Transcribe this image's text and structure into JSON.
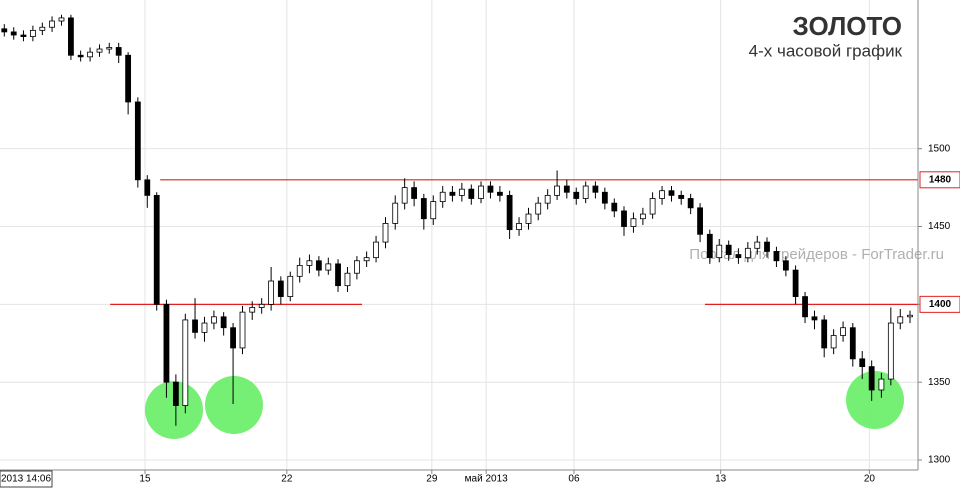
{
  "chart_data": {
    "type": "candlestick",
    "title": "ЗОЛОТО",
    "subtitle": "4-х часовой график",
    "watermark": "Портал для трейдеров - ForTrader.ru",
    "cursor_label": "2013 14:06",
    "x": [
      0.15,
      0.48,
      0.82,
      1.15,
      1.48,
      1.82,
      2.15,
      2.48,
      2.82,
      3.15,
      3.48,
      3.82,
      4.15,
      4.48,
      4.82,
      5.15,
      5.48,
      5.82,
      6.15,
      6.48,
      6.82,
      7.15,
      7.48,
      7.82,
      8.15,
      8.48,
      8.82,
      9.15,
      9.48,
      9.82,
      10.15,
      10.48,
      10.82,
      11.15,
      11.48,
      11.82,
      12.15,
      12.48,
      12.82,
      13.15,
      13.48,
      13.82,
      14.15,
      14.48,
      14.82,
      15.15,
      15.48,
      15.82,
      16.15,
      16.48,
      16.82,
      17.15,
      17.48,
      17.82,
      18.15,
      18.48,
      18.82,
      19.15,
      19.48,
      19.82,
      20.15,
      20.48,
      20.82,
      21.15,
      21.48,
      21.82,
      22.15,
      22.48,
      22.82,
      23.15,
      23.48,
      23.82,
      24.15,
      24.48,
      24.82,
      25.15,
      25.48,
      25.82,
      26.15,
      26.48,
      26.82,
      27.15,
      27.48,
      27.82,
      28.15,
      28.48,
      28.82,
      29.15,
      29.48,
      29.82,
      30.15,
      30.48,
      30.82,
      31.15,
      31.48,
      31.82
    ],
    "open": [
      1577,
      1575,
      1573,
      1572,
      1576,
      1578,
      1582,
      1584,
      1560,
      1559,
      1562,
      1564,
      1565,
      1560,
      1530,
      1480,
      1470,
      1400,
      1350,
      1335,
      1390,
      1382,
      1388,
      1392,
      1385,
      1372,
      1395,
      1398,
      1400,
      1415,
      1405,
      1418,
      1425,
      1428,
      1422,
      1426,
      1412,
      1420,
      1428,
      1430,
      1440,
      1452,
      1465,
      1475,
      1468,
      1455,
      1466,
      1472,
      1470,
      1474,
      1468,
      1476,
      1472,
      1470,
      1448,
      1452,
      1458,
      1465,
      1470,
      1476,
      1472,
      1468,
      1476,
      1472,
      1465,
      1460,
      1450,
      1455,
      1458,
      1468,
      1473,
      1470,
      1468,
      1462,
      1445,
      1430,
      1438,
      1432,
      1430,
      1436,
      1440,
      1434,
      1428,
      1422,
      1405,
      1392,
      1390,
      1372,
      1380,
      1385,
      1365,
      1360,
      1345,
      1352,
      1388,
      1392
    ],
    "high": [
      1580,
      1578,
      1576,
      1579,
      1581,
      1585,
      1586,
      1586,
      1563,
      1565,
      1567,
      1568,
      1568,
      1562,
      1533,
      1483,
      1472,
      1403,
      1355,
      1394,
      1404,
      1392,
      1396,
      1395,
      1388,
      1399,
      1402,
      1404,
      1424,
      1418,
      1421,
      1430,
      1432,
      1431,
      1430,
      1429,
      1424,
      1431,
      1434,
      1444,
      1456,
      1470,
      1481,
      1479,
      1471,
      1470,
      1476,
      1476,
      1478,
      1477,
      1479,
      1479,
      1476,
      1473,
      1456,
      1462,
      1469,
      1474,
      1486,
      1480,
      1475,
      1479,
      1479,
      1475,
      1468,
      1463,
      1459,
      1462,
      1472,
      1476,
      1476,
      1473,
      1471,
      1465,
      1448,
      1442,
      1441,
      1436,
      1440,
      1444,
      1443,
      1437,
      1431,
      1425,
      1408,
      1396,
      1393,
      1384,
      1389,
      1388,
      1370,
      1364,
      1356,
      1398,
      1397,
      1396
    ],
    "low": [
      1572,
      1570,
      1569,
      1569,
      1573,
      1575,
      1579,
      1557,
      1556,
      1556,
      1559,
      1561,
      1555,
      1522,
      1475,
      1462,
      1396,
      1340,
      1322,
      1330,
      1378,
      1376,
      1384,
      1380,
      1336,
      1368,
      1390,
      1394,
      1396,
      1400,
      1402,
      1414,
      1420,
      1418,
      1419,
      1408,
      1408,
      1416,
      1424,
      1427,
      1436,
      1448,
      1461,
      1463,
      1448,
      1451,
      1462,
      1466,
      1466,
      1464,
      1465,
      1468,
      1466,
      1442,
      1444,
      1448,
      1454,
      1461,
      1467,
      1468,
      1464,
      1465,
      1468,
      1461,
      1456,
      1444,
      1446,
      1451,
      1455,
      1464,
      1466,
      1464,
      1458,
      1440,
      1426,
      1427,
      1428,
      1426,
      1427,
      1432,
      1430,
      1424,
      1418,
      1400,
      1388,
      1384,
      1366,
      1368,
      1376,
      1360,
      1352,
      1338,
      1340,
      1348,
      1384,
      1388
    ],
    "close": [
      1575,
      1573,
      1572,
      1576,
      1578,
      1582,
      1584,
      1560,
      1559,
      1562,
      1564,
      1565,
      1560,
      1530,
      1480,
      1470,
      1400,
      1350,
      1335,
      1390,
      1382,
      1388,
      1392,
      1385,
      1372,
      1395,
      1398,
      1400,
      1415,
      1405,
      1418,
      1425,
      1428,
      1422,
      1426,
      1412,
      1420,
      1428,
      1430,
      1440,
      1452,
      1465,
      1475,
      1468,
      1455,
      1466,
      1472,
      1470,
      1474,
      1468,
      1476,
      1472,
      1470,
      1448,
      1452,
      1458,
      1465,
      1470,
      1476,
      1472,
      1468,
      1476,
      1472,
      1465,
      1460,
      1450,
      1455,
      1458,
      1468,
      1473,
      1470,
      1468,
      1462,
      1445,
      1430,
      1438,
      1432,
      1430,
      1436,
      1440,
      1434,
      1428,
      1422,
      1405,
      1392,
      1390,
      1372,
      1380,
      1385,
      1365,
      1360,
      1345,
      1352,
      1388,
      1392,
      1393
    ],
    "up_color": "#ffffff",
    "down_color": "#000000",
    "line_color": "#000000",
    "xlim": [
      0,
      32.1
    ],
    "xticks": [
      {
        "value": 5.07,
        "label": "15"
      },
      {
        "value": 10.03,
        "label": "22"
      },
      {
        "value": 15.1,
        "label": "29"
      },
      {
        "value": 17.0,
        "label": "май 2013"
      },
      {
        "value": 20.07,
        "label": "06"
      },
      {
        "value": 25.2,
        "label": "13"
      },
      {
        "value": 30.4,
        "label": "20"
      }
    ],
    "ylim": [
      1293.6,
      1595.5
    ],
    "yticks": [
      1300,
      1350,
      1400,
      1450,
      1500
    ],
    "grid": true,
    "hlines": [
      {
        "y": 1480,
        "x": [
          5.6,
          32.1
        ]
      },
      {
        "y": 1400,
        "x": [
          3.85,
          12.66
        ]
      },
      {
        "y": 1400,
        "x": [
          24.65,
          32.1
        ]
      }
    ],
    "hline_color": "#e02020"
  }
}
